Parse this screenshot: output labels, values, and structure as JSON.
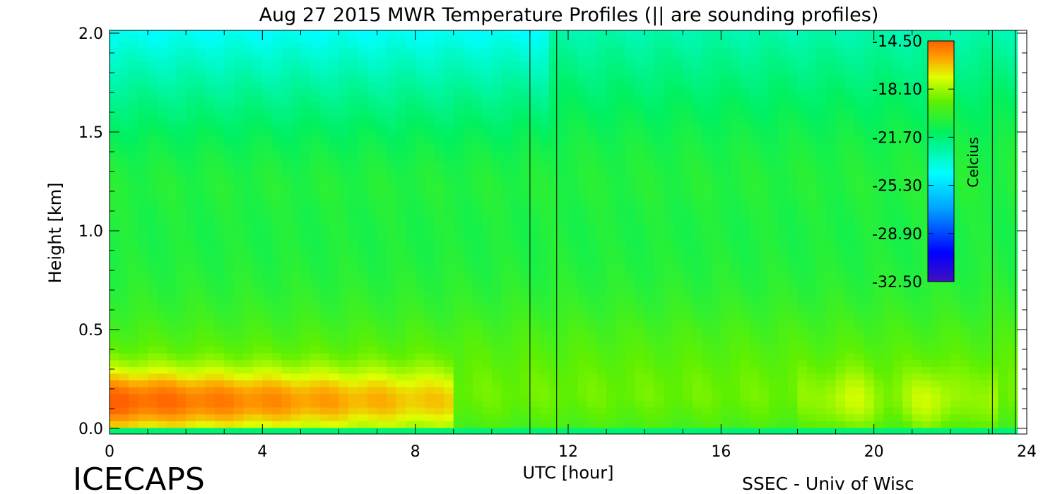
{
  "chart_data": {
    "type": "heatmap",
    "title": "Aug 27 2015 MWR Temperature Profiles (|| are sounding profiles)",
    "xlabel": "UTC [hour]",
    "ylabel": "Height [km]",
    "xlim": [
      0,
      24
    ],
    "ylim": [
      0.0,
      2.0
    ],
    "x_ticks": [
      "0",
      "4",
      "8",
      "12",
      "16",
      "20",
      "24"
    ],
    "y_ticks": [
      "0.0",
      "0.5",
      "1.0",
      "1.5",
      "2.0"
    ],
    "sounding_profiles_utc": [
      11.0,
      11.7,
      23.1
    ],
    "data_end_utc": 23.7,
    "colorbar": {
      "label": "Celcius",
      "ticks": [
        "-14.50",
        "-18.10",
        "-21.70",
        "-25.30",
        "-28.90",
        "-32.50"
      ],
      "range": [
        -32.5,
        -14.5
      ]
    }
  },
  "footer": {
    "left": "ICECAPS",
    "right": "SSEC - Univ of Wisc"
  }
}
